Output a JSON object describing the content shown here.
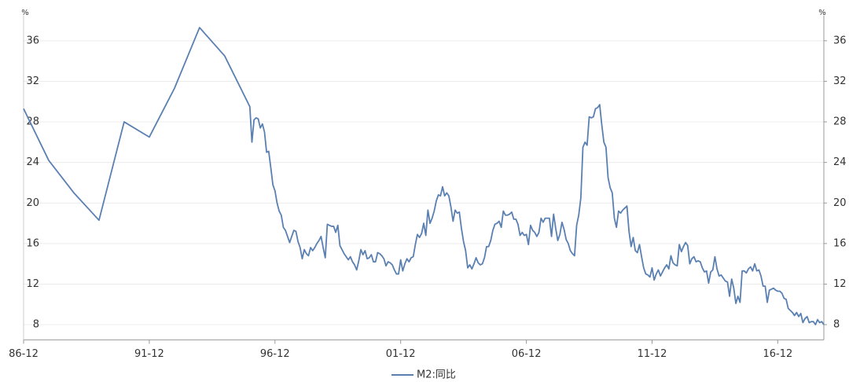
{
  "chart_data": {
    "type": "line",
    "y_unit": "%",
    "xlim": [
      "86-12",
      "18-10"
    ],
    "xticks": [
      "86-12",
      "91-12",
      "96-12",
      "01-12",
      "06-12",
      "11-12",
      "16-12"
    ],
    "ylim": [
      6.5,
      38.5
    ],
    "yticks": [
      8,
      12,
      16,
      20,
      24,
      28,
      32,
      36
    ],
    "y2lim": [
      6.5,
      38.5
    ],
    "y2ticks": [
      8,
      12,
      16,
      20,
      24,
      28,
      32,
      36
    ],
    "grid": true,
    "x": [
      "86-12",
      "87-12",
      "88-12",
      "89-12",
      "90-12",
      "91-12",
      "92-12",
      "93-12",
      "94-12",
      "95-12",
      "96-01",
      "96-02",
      "96-03",
      "96-04",
      "96-05",
      "96-06",
      "96-07",
      "96-08",
      "96-09",
      "96-10",
      "96-11",
      "96-12",
      "97-01",
      "97-02",
      "97-03",
      "97-04",
      "97-05",
      "97-06",
      "97-07",
      "97-08",
      "97-09",
      "97-10",
      "97-11",
      "97-12",
      "98-01",
      "98-02",
      "98-03",
      "98-04",
      "98-05",
      "98-06",
      "98-07",
      "98-08",
      "98-09",
      "98-10",
      "98-11",
      "98-12",
      "99-01",
      "99-02",
      "99-03",
      "99-04",
      "99-05",
      "99-06",
      "99-07",
      "99-08",
      "99-09",
      "99-10",
      "99-11",
      "99-12",
      "00-01",
      "00-02",
      "00-03",
      "00-04",
      "00-05",
      "00-06",
      "00-07",
      "00-08",
      "00-09",
      "00-10",
      "00-11",
      "00-12",
      "01-01",
      "01-02",
      "01-03",
      "01-04",
      "01-05",
      "01-06",
      "01-07",
      "01-08",
      "01-09",
      "01-10",
      "01-11",
      "01-12",
      "02-01",
      "02-02",
      "02-03",
      "02-04",
      "02-05",
      "02-06",
      "02-07",
      "02-08",
      "02-09",
      "02-10",
      "02-11",
      "02-12",
      "03-01",
      "03-02",
      "03-03",
      "03-04",
      "03-05",
      "03-06",
      "03-07",
      "03-08",
      "03-09",
      "03-10",
      "03-11",
      "03-12",
      "04-01",
      "04-02",
      "04-03",
      "04-04",
      "04-05",
      "04-06",
      "04-07",
      "04-08",
      "04-09",
      "04-10",
      "04-11",
      "04-12",
      "05-01",
      "05-02",
      "05-03",
      "05-04",
      "05-05",
      "05-06",
      "05-07",
      "05-08",
      "05-09",
      "05-10",
      "05-11",
      "05-12",
      "06-01",
      "06-02",
      "06-03",
      "06-04",
      "06-05",
      "06-06",
      "06-07",
      "06-08",
      "06-09",
      "06-10",
      "06-11",
      "06-12",
      "07-01",
      "07-02",
      "07-03",
      "07-04",
      "07-05",
      "07-06",
      "07-07",
      "07-08",
      "07-09",
      "07-10",
      "07-11",
      "07-12",
      "08-01",
      "08-02",
      "08-03",
      "08-04",
      "08-05",
      "08-06",
      "08-07",
      "08-08",
      "08-09",
      "08-10",
      "08-11",
      "08-12",
      "09-01",
      "09-02",
      "09-03",
      "09-04",
      "09-05",
      "09-06",
      "09-07",
      "09-08",
      "09-09",
      "09-10",
      "09-11",
      "09-12",
      "10-01",
      "10-02",
      "10-03",
      "10-04",
      "10-05",
      "10-06",
      "10-07",
      "10-08",
      "10-09",
      "10-10",
      "10-11",
      "10-12",
      "11-01",
      "11-02",
      "11-03",
      "11-04",
      "11-05",
      "11-06",
      "11-07",
      "11-08",
      "11-09",
      "11-10",
      "11-11",
      "11-12",
      "12-01",
      "12-02",
      "12-03",
      "12-04",
      "12-05",
      "12-06",
      "12-07",
      "12-08",
      "12-09",
      "12-10",
      "12-11",
      "12-12",
      "13-01",
      "13-02",
      "13-03",
      "13-04",
      "13-05",
      "13-06",
      "13-07",
      "13-08",
      "13-09",
      "13-10",
      "13-11",
      "13-12",
      "14-01",
      "14-02",
      "14-03",
      "14-04",
      "14-05",
      "14-06",
      "14-07",
      "14-08",
      "14-09",
      "14-10",
      "14-11",
      "14-12",
      "15-01",
      "15-02",
      "15-03",
      "15-04",
      "15-05",
      "15-06",
      "15-07",
      "15-08",
      "15-09",
      "15-10",
      "15-11",
      "15-12",
      "16-01",
      "16-02",
      "16-03",
      "16-04",
      "16-05",
      "16-06",
      "16-07",
      "16-08",
      "16-09",
      "16-10",
      "16-11",
      "16-12",
      "17-01",
      "17-02",
      "17-03",
      "17-04",
      "17-05",
      "17-06",
      "17-07",
      "17-08",
      "17-09",
      "17-10",
      "17-11",
      "17-12",
      "18-01",
      "18-02",
      "18-03",
      "18-04",
      "18-05",
      "18-06",
      "18-07",
      "18-08",
      "18-09",
      "18-10"
    ],
    "series": [
      {
        "name": "M2:同比",
        "color": "#5a80b2",
        "values": [
          29.3,
          24.2,
          21.0,
          18.3,
          28.0,
          26.5,
          31.3,
          37.3,
          34.5,
          29.5,
          26.0,
          28.2,
          28.4,
          28.3,
          27.4,
          27.8,
          27.0,
          25.0,
          25.1,
          23.5,
          21.8,
          21.2,
          20.0,
          19.2,
          18.8,
          17.6,
          17.3,
          16.7,
          16.1,
          16.7,
          17.3,
          17.2,
          16.2,
          15.6,
          14.5,
          15.4,
          15.0,
          14.8,
          15.6,
          15.3,
          15.6,
          16.0,
          16.3,
          16.7,
          15.6,
          14.6,
          17.9,
          17.8,
          17.7,
          17.7,
          17.1,
          17.8,
          15.8,
          15.4,
          15.0,
          14.7,
          14.4,
          14.7,
          14.2,
          13.9,
          13.4,
          14.3,
          15.4,
          14.9,
          15.3,
          14.5,
          14.6,
          14.9,
          14.2,
          14.2,
          15.1,
          15.0,
          14.8,
          14.5,
          13.8,
          14.2,
          14.1,
          13.9,
          13.4,
          13.0,
          13.0,
          14.4,
          13.3,
          14.0,
          14.5,
          14.2,
          14.6,
          14.7,
          15.9,
          16.9,
          16.6,
          17.0,
          18.0,
          16.8,
          19.3,
          18.0,
          18.5,
          19.2,
          20.2,
          20.8,
          20.7,
          21.6,
          20.7,
          21.0,
          20.7,
          19.6,
          18.2,
          19.3,
          19.0,
          19.1,
          17.5,
          16.2,
          15.3,
          13.6,
          13.9,
          13.5,
          14.0,
          14.6,
          14.1,
          13.9,
          14.0,
          14.6,
          15.7,
          15.7,
          16.3,
          17.3,
          17.9,
          18.0,
          18.2,
          17.6,
          19.2,
          18.8,
          18.8,
          18.9,
          19.1,
          18.4,
          18.4,
          17.9,
          16.8,
          17.1,
          16.8,
          16.9,
          15.9,
          17.8,
          17.3,
          17.1,
          16.7,
          17.1,
          18.5,
          18.1,
          18.5,
          18.5,
          18.5,
          16.7,
          18.9,
          17.5,
          16.3,
          16.9,
          18.1,
          17.4,
          16.4,
          16.0,
          15.3,
          15.0,
          14.8,
          17.8,
          18.8,
          20.5,
          25.5,
          26.0,
          25.7,
          28.5,
          28.4,
          28.5,
          29.3,
          29.4,
          29.7,
          27.7,
          26.0,
          25.5,
          22.5,
          21.5,
          21.0,
          18.5,
          17.6,
          19.2,
          19.0,
          19.3,
          19.5,
          19.7,
          17.2,
          15.7,
          16.6,
          15.3,
          15.1,
          15.9,
          14.7,
          13.6,
          13.0,
          12.9,
          12.7,
          13.6,
          12.4,
          13.0,
          13.4,
          12.8,
          13.2,
          13.6,
          13.9,
          13.5,
          14.8,
          14.1,
          13.9,
          13.8,
          15.9,
          15.2,
          15.7,
          16.1,
          15.8,
          14.0,
          14.5,
          14.7,
          14.2,
          14.3,
          14.2,
          13.6,
          13.2,
          13.3,
          12.1,
          13.2,
          13.4,
          14.7,
          13.5,
          12.8,
          12.9,
          12.6,
          12.3,
          12.2,
          10.8,
          12.5,
          11.6,
          10.1,
          10.8,
          10.2,
          13.3,
          13.3,
          13.1,
          13.5,
          13.7,
          13.3,
          14.0,
          13.3,
          13.4,
          12.8,
          11.8,
          11.8,
          10.2,
          11.4,
          11.5,
          11.6,
          11.4,
          11.3,
          11.3,
          11.1,
          10.6,
          10.5,
          9.6,
          9.4,
          9.2,
          8.9,
          9.2,
          8.8,
          9.1,
          8.2,
          8.6,
          8.8,
          8.2,
          8.3,
          8.3,
          8.0,
          8.5,
          8.2,
          8.3,
          8.0
        ]
      }
    ]
  }
}
